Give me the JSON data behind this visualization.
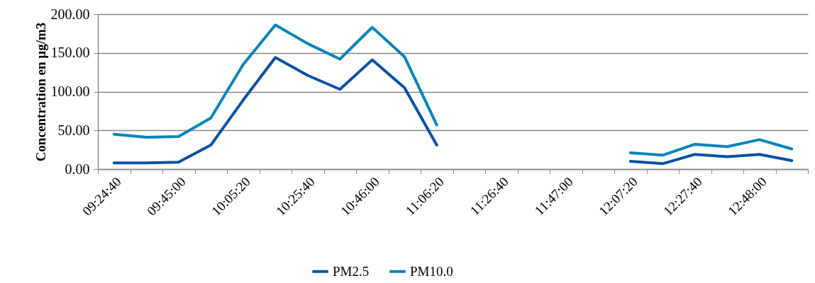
{
  "chart_data": {
    "type": "line",
    "ylabel": "Concentration en µg/m3",
    "categories": [
      "09:24:40",
      null,
      "09:45:00",
      null,
      "10:05:20",
      null,
      "10:25:40",
      null,
      "10:46:00",
      null,
      "11:06:20",
      null,
      "11:26:40",
      null,
      "11:47:00",
      null,
      "12:07:20",
      null,
      "12:27:40",
      null,
      "12:48:00",
      null
    ],
    "series": [
      {
        "name": "PM2.5",
        "color": "#0a52a3",
        "values": [
          8,
          8,
          9,
          31,
          89,
          144,
          121,
          103,
          141,
          105,
          31,
          null,
          null,
          null,
          null,
          null,
          10,
          7,
          19,
          16,
          19,
          11
        ]
      },
      {
        "name": "PM10.0",
        "color": "#0a84b8",
        "values": [
          45,
          41,
          42,
          66,
          135,
          186,
          162,
          142,
          183,
          145,
          57,
          null,
          null,
          null,
          null,
          null,
          21,
          18,
          32,
          29,
          38,
          26
        ]
      }
    ],
    "ylim": [
      0,
      200
    ],
    "yticks": [
      {
        "value": 0,
        "label": "0.00"
      },
      {
        "value": 50,
        "label": "50.00"
      },
      {
        "value": 100,
        "label": "100.00"
      },
      {
        "value": 150,
        "label": "150.00"
      },
      {
        "value": 200,
        "label": "200.00"
      }
    ],
    "grid": "y",
    "legend": "bottom",
    "marker": "none",
    "line_style": "solid"
  }
}
